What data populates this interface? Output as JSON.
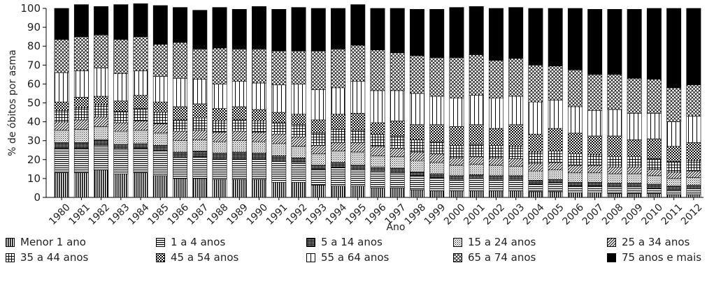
{
  "chart_data": {
    "type": "bar",
    "stacked": true,
    "ylabel": "% de óbitos por asma",
    "xlabel": "Ano",
    "ylim": [
      0,
      100
    ],
    "yticks": [
      0,
      10,
      20,
      30,
      40,
      50,
      60,
      70,
      80,
      90,
      100
    ],
    "grid": false,
    "legend_position": "bottom",
    "categories": [
      "1980",
      "1981",
      "1982",
      "1983",
      "1984",
      "1985",
      "1986",
      "1987",
      "1988",
      "1989",
      "1990",
      "1991",
      "1992",
      "1993",
      "1994",
      "1995",
      "1996",
      "1997",
      "1998",
      "1999",
      "2000",
      "2001",
      "2002",
      "2003",
      "2004",
      "2005",
      "2006",
      "2007",
      "2008",
      "2009",
      "2010",
      "2011",
      "2012"
    ],
    "series": [
      {
        "name": "Menor 1 ano",
        "pattern": "vertical-lines",
        "values": [
          13.0,
          13.0,
          14.5,
          12.5,
          13.0,
          11.5,
          10.0,
          10.0,
          9.5,
          9.5,
          9.5,
          8.0,
          8.0,
          6.5,
          6.0,
          6.0,
          5.0,
          5.0,
          4.0,
          3.5,
          3.5,
          3.5,
          3.5,
          3.5,
          3.0,
          3.0,
          2.5,
          2.5,
          2.0,
          2.0,
          2.0,
          1.5,
          1.5
        ]
      },
      {
        "name": "1 a 4 anos",
        "pattern": "horizontal-lines",
        "values": [
          13.0,
          13.0,
          13.0,
          13.0,
          13.0,
          13.0,
          11.0,
          11.5,
          11.0,
          11.0,
          11.0,
          11.0,
          10.5,
          8.5,
          10.0,
          8.5,
          9.0,
          8.0,
          7.5,
          7.0,
          6.0,
          6.5,
          6.0,
          6.0,
          4.0,
          4.5,
          3.5,
          3.5,
          3.5,
          3.5,
          3.0,
          2.5,
          3.0
        ]
      },
      {
        "name": "5 a 14 anos",
        "pattern": "dense-dots",
        "values": [
          3.0,
          3.0,
          3.0,
          2.5,
          2.5,
          3.0,
          3.0,
          3.0,
          3.0,
          3.5,
          3.0,
          3.0,
          2.5,
          2.0,
          2.5,
          2.5,
          2.0,
          2.5,
          2.0,
          2.0,
          2.0,
          2.0,
          2.0,
          2.0,
          2.0,
          2.0,
          2.0,
          2.0,
          2.0,
          2.0,
          2.0,
          2.0,
          2.0
        ]
      },
      {
        "name": "15 a 24 anos",
        "pattern": "dots",
        "values": [
          6.5,
          7.0,
          7.0,
          7.0,
          7.0,
          6.5,
          6.0,
          6.0,
          6.0,
          6.0,
          6.0,
          6.5,
          6.0,
          6.0,
          6.0,
          7.0,
          6.0,
          6.0,
          6.0,
          6.0,
          5.5,
          5.5,
          5.5,
          5.0,
          5.0,
          5.0,
          5.0,
          5.0,
          5.0,
          5.0,
          4.5,
          4.0,
          4.0
        ]
      },
      {
        "name": "25 a 34 anos",
        "pattern": "diagonal-lines",
        "values": [
          4.5,
          5.0,
          5.0,
          4.5,
          5.0,
          5.0,
          5.0,
          5.0,
          5.0,
          5.0,
          5.0,
          5.0,
          5.0,
          4.5,
          4.5,
          5.0,
          5.0,
          4.5,
          4.5,
          4.5,
          4.0,
          4.0,
          4.0,
          4.0,
          4.0,
          4.0,
          4.0,
          4.0,
          3.5,
          3.5,
          3.5,
          3.5,
          3.5
        ]
      },
      {
        "name": "35 a 44 anos",
        "pattern": "grid",
        "values": [
          6.0,
          6.5,
          6.5,
          6.0,
          6.5,
          6.0,
          6.0,
          6.5,
          6.0,
          6.0,
          6.0,
          6.0,
          6.5,
          6.5,
          7.0,
          6.5,
          6.5,
          6.5,
          6.5,
          6.5,
          6.5,
          6.5,
          6.5,
          6.5,
          6.0,
          6.0,
          6.0,
          5.5,
          5.5,
          5.5,
          5.5,
          5.5,
          5.5
        ]
      },
      {
        "name": "45 a 54 anos",
        "pattern": "checkerboard",
        "values": [
          4.5,
          5.5,
          4.5,
          5.5,
          7.0,
          5.5,
          7.0,
          7.5,
          6.5,
          7.0,
          6.0,
          5.5,
          5.5,
          7.0,
          8.0,
          9.0,
          6.0,
          8.0,
          8.0,
          9.0,
          10.0,
          10.5,
          9.0,
          11.5,
          9.5,
          12.0,
          11.0,
          10.0,
          11.0,
          9.0,
          10.5,
          8.0,
          9.5
        ]
      },
      {
        "name": "55 a 64 anos",
        "pattern": "wide-vertical-lines",
        "values": [
          15.5,
          14.0,
          15.0,
          14.5,
          13.0,
          13.5,
          15.0,
          13.0,
          13.0,
          13.5,
          14.0,
          14.5,
          16.0,
          16.0,
          14.0,
          17.0,
          17.0,
          16.0,
          16.5,
          15.0,
          15.0,
          15.5,
          16.0,
          15.0,
          17.0,
          15.0,
          14.0,
          13.5,
          14.0,
          14.0,
          13.5,
          13.0,
          14.0
        ]
      },
      {
        "name": "65 a 74 anos",
        "pattern": "crosshatch",
        "values": [
          17.5,
          18.0,
          17.5,
          18.0,
          18.0,
          17.0,
          19.0,
          16.0,
          19.0,
          17.0,
          18.0,
          18.0,
          17.5,
          20.5,
          20.5,
          19.0,
          21.5,
          20.0,
          20.0,
          20.5,
          21.5,
          21.5,
          20.0,
          20.0,
          19.5,
          18.0,
          19.5,
          19.0,
          18.5,
          18.5,
          18.0,
          18.0,
          16.5
        ]
      },
      {
        "name": "75 anos e mais",
        "pattern": "solid-black",
        "values": [
          16.5,
          17.0,
          15.0,
          18.5,
          17.5,
          20.5,
          18.5,
          20.5,
          21.5,
          21.0,
          22.5,
          22.0,
          23.0,
          22.5,
          21.5,
          21.5,
          22.0,
          23.5,
          24.5,
          25.5,
          26.5,
          25.5,
          27.5,
          27.0,
          30.0,
          30.5,
          32.5,
          34.5,
          34.5,
          36.5,
          37.5,
          42.0,
          40.5
        ]
      }
    ]
  }
}
